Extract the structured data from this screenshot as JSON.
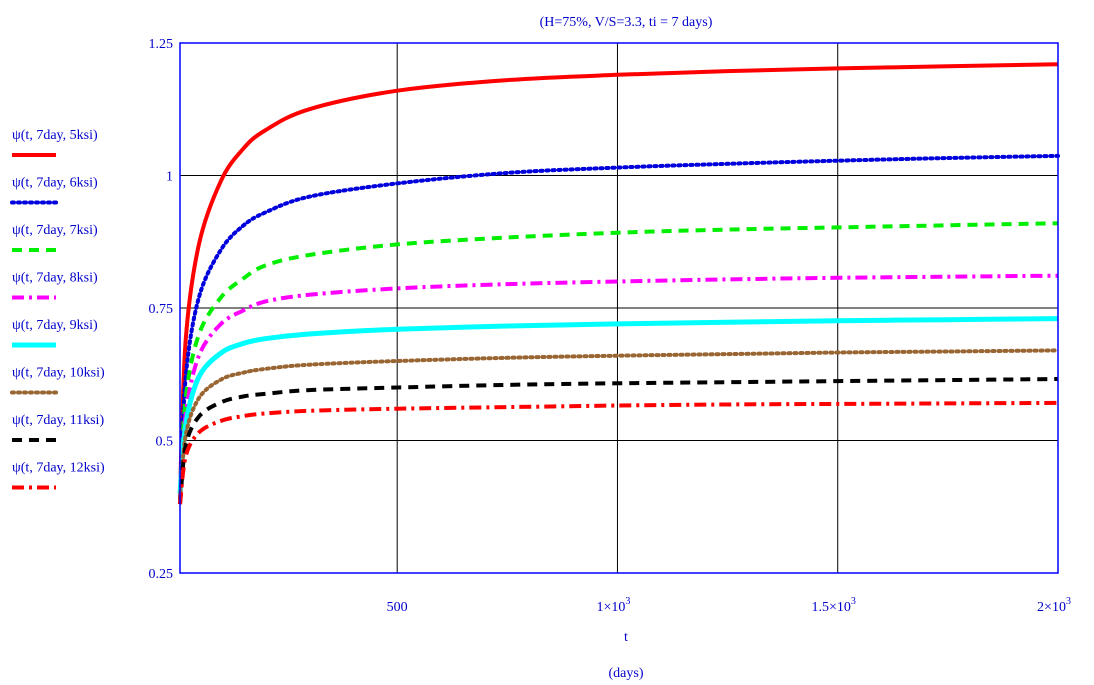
{
  "chart_data": {
    "type": "line",
    "title": "(H=75%, V/S=3.3, ti = 7 days)",
    "xlabel": "t",
    "xlabel_unit": "(days)",
    "ylabel": "",
    "xlim": [
      7,
      2000
    ],
    "ylim": [
      0.25,
      1.25
    ],
    "grid": true,
    "legend_position": "left",
    "x_ticks": [
      {
        "value": 500,
        "label": "500",
        "sup": ""
      },
      {
        "value": 1000,
        "label": "1×10",
        "sup": "3"
      },
      {
        "value": 1500,
        "label": "1.5×10",
        "sup": "3"
      },
      {
        "value": 2000,
        "label": "2×10",
        "sup": "3"
      }
    ],
    "y_ticks": [
      {
        "value": 0.25,
        "label": "0.25"
      },
      {
        "value": 0.5,
        "label": "0.5"
      },
      {
        "value": 0.75,
        "label": "0.75"
      },
      {
        "value": 1,
        "label": "1"
      },
      {
        "value": 1.25,
        "label": "1.25"
      }
    ],
    "x": [
      7,
      20,
      50,
      100,
      150,
      200,
      300,
      500,
      750,
      1000,
      1250,
      1500,
      1750,
      2000
    ],
    "series": [
      {
        "name": "ψ(t, 7day, 5ksi)",
        "color": "#ff0000",
        "dash": "solid",
        "width": 4,
        "values": [
          0.4,
          0.69,
          0.87,
          0.99,
          1.05,
          1.085,
          1.125,
          1.16,
          1.18,
          1.19,
          1.197,
          1.202,
          1.206,
          1.21
        ]
      },
      {
        "name": "ψ(t, 7day, 6ksi)",
        "color": "#0000dd",
        "dash": "dotted",
        "width": 4,
        "values": [
          0.39,
          0.62,
          0.77,
          0.86,
          0.905,
          0.93,
          0.96,
          0.985,
          1.005,
          1.015,
          1.022,
          1.028,
          1.033,
          1.037
        ]
      },
      {
        "name": "ψ(t, 7day, 7ksi)",
        "color": "#00ee00",
        "dash": "dashed",
        "width": 4,
        "values": [
          0.39,
          0.58,
          0.7,
          0.77,
          0.805,
          0.83,
          0.85,
          0.87,
          0.883,
          0.892,
          0.898,
          0.902,
          0.906,
          0.91
        ]
      },
      {
        "name": "ψ(t, 7day, 8ksi)",
        "color": "#ff00ff",
        "dash": "dashdot",
        "width": 4,
        "values": [
          0.39,
          0.55,
          0.66,
          0.72,
          0.745,
          0.762,
          0.775,
          0.787,
          0.795,
          0.8,
          0.804,
          0.807,
          0.809,
          0.811
        ]
      },
      {
        "name": "ψ(t, 7day, 9ksi)",
        "color": "#00ffff",
        "dash": "solid",
        "width": 5,
        "values": [
          0.4,
          0.53,
          0.62,
          0.665,
          0.683,
          0.692,
          0.701,
          0.71,
          0.716,
          0.72,
          0.723,
          0.726,
          0.728,
          0.73
        ]
      },
      {
        "name": "ψ(t, 7day, 10ksi)",
        "color": "#996633",
        "dash": "dotted",
        "width": 4,
        "values": [
          0.39,
          0.51,
          0.58,
          0.615,
          0.628,
          0.635,
          0.643,
          0.65,
          0.656,
          0.66,
          0.663,
          0.666,
          0.668,
          0.67
        ]
      },
      {
        "name": "ψ(t, 7day, 11ksi)",
        "color": "#000000",
        "dash": "dashed",
        "width": 4,
        "values": [
          0.38,
          0.49,
          0.545,
          0.572,
          0.583,
          0.588,
          0.595,
          0.6,
          0.605,
          0.608,
          0.61,
          0.612,
          0.614,
          0.616
        ]
      },
      {
        "name": "ψ(t, 7day, 12ksi)",
        "color": "#ff0000",
        "dash": "dashdot",
        "width": 4,
        "values": [
          0.38,
          0.47,
          0.515,
          0.537,
          0.546,
          0.551,
          0.556,
          0.56,
          0.563,
          0.566,
          0.568,
          0.569,
          0.57,
          0.571
        ]
      }
    ]
  }
}
